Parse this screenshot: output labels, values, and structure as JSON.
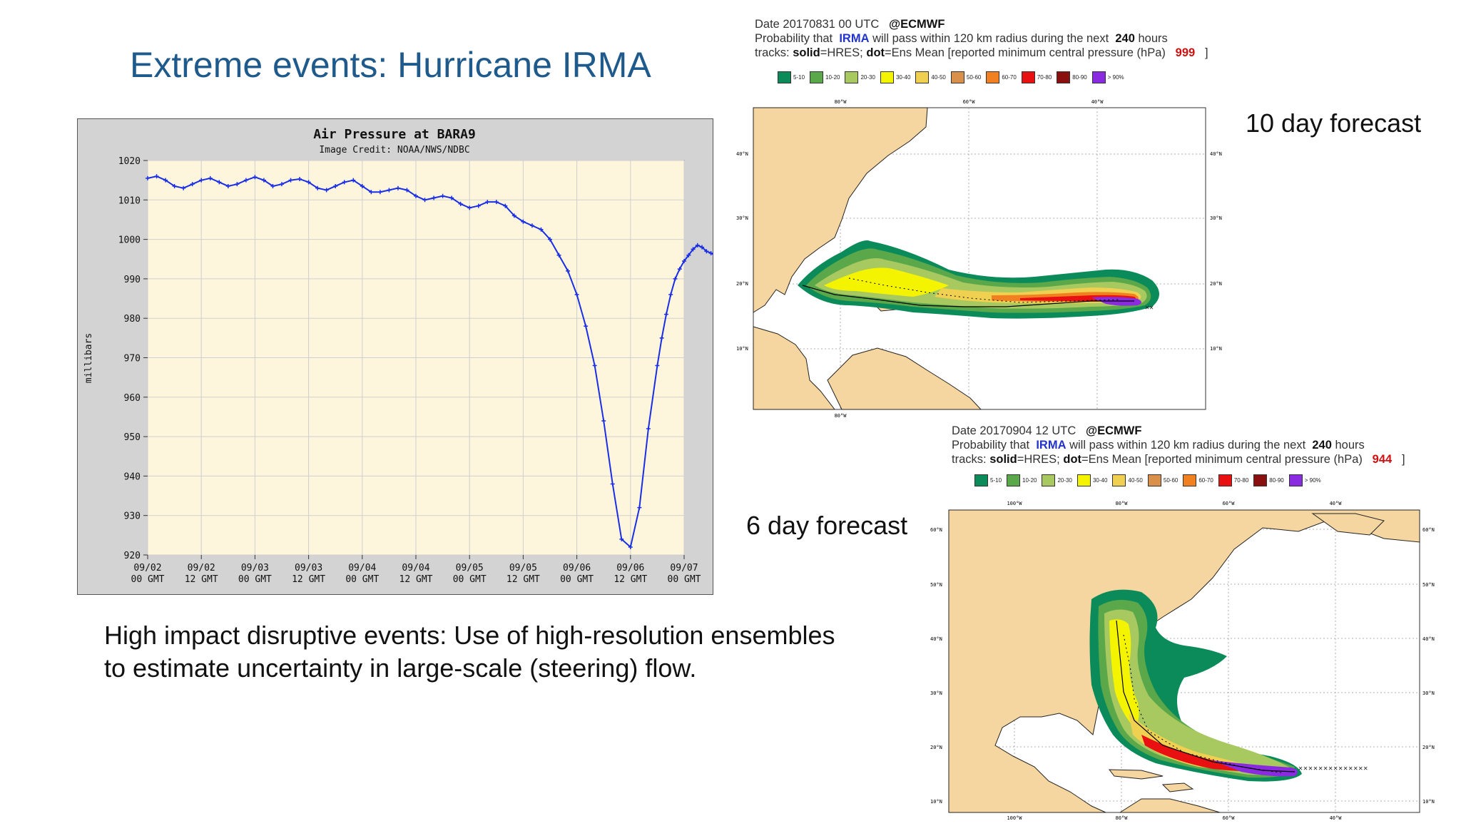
{
  "slide": {
    "title": "Extreme events: Hurricane IRMA",
    "caption_line1": "High impact disruptive events: Use of high-resolution ensembles",
    "caption_line2": "to estimate uncertainty in large-scale (steering) flow."
  },
  "chart_data": {
    "type": "line",
    "title": "Air Pressure at BARA9",
    "subtitle": "Image Credit: NOAA/NWS/NDBC",
    "ylabel": "millibars",
    "xlabel": "",
    "ylim": [
      920,
      1020
    ],
    "yticks": [
      1020,
      1010,
      1000,
      990,
      980,
      970,
      960,
      950,
      940,
      930,
      920
    ],
    "xticks": [
      {
        "date": "09/02",
        "time": "00 GMT"
      },
      {
        "date": "09/02",
        "time": "12 GMT"
      },
      {
        "date": "09/03",
        "time": "00 GMT"
      },
      {
        "date": "09/03",
        "time": "12 GMT"
      },
      {
        "date": "09/04",
        "time": "00 GMT"
      },
      {
        "date": "09/04",
        "time": "12 GMT"
      },
      {
        "date": "09/05",
        "time": "00 GMT"
      },
      {
        "date": "09/05",
        "time": "12 GMT"
      },
      {
        "date": "09/06",
        "time": "00 GMT"
      },
      {
        "date": "09/06",
        "time": "12 GMT"
      },
      {
        "date": "09/07",
        "time": "00 GMT"
      }
    ],
    "grid": true,
    "series": [
      {
        "color": "#1a2ee6",
        "x_hours": [
          0,
          2,
          4,
          6,
          8,
          10,
          12,
          14,
          16,
          18,
          20,
          22,
          24,
          26,
          28,
          30,
          32,
          34,
          36,
          38,
          40,
          42,
          44,
          46,
          48,
          50,
          52,
          54,
          56,
          58,
          60,
          62,
          64,
          66,
          68,
          70,
          72,
          74,
          76,
          78,
          80,
          82,
          84,
          86,
          88,
          90,
          92,
          94,
          96,
          98,
          100,
          102,
          104,
          106,
          108,
          110,
          112,
          114,
          115,
          116,
          117,
          118,
          119,
          120,
          121,
          122,
          123,
          124,
          125,
          126,
          127,
          128,
          129,
          130,
          131,
          132
        ],
        "values": [
          1015.5,
          1016,
          1015,
          1013.5,
          1013,
          1014,
          1015,
          1015.5,
          1014.5,
          1013.5,
          1014,
          1015,
          1015.8,
          1015,
          1013.5,
          1014,
          1015,
          1015.3,
          1014.5,
          1013,
          1012.5,
          1013.5,
          1014.5,
          1015,
          1013.5,
          1012,
          1012,
          1012.5,
          1013,
          1012.5,
          1011,
          1010,
          1010.5,
          1011,
          1010.5,
          1009,
          1008,
          1008.5,
          1009.5,
          1009.5,
          1008.5,
          1006,
          1004.5,
          1003.5,
          1002.5,
          1000,
          996,
          992,
          986,
          978,
          968,
          954,
          938,
          924,
          922,
          932,
          952,
          968,
          975,
          981,
          986,
          990,
          992.5,
          994.5,
          996,
          997.5,
          998.5,
          998,
          997,
          996.5,
          996,
          995.5,
          995,
          994.5,
          994,
          998.5
        ]
      }
    ]
  },
  "forecasts": [
    {
      "id": "top",
      "date_line": "Date 20170831 00 UTC",
      "org": "@ECMWF",
      "prob_prefix": "Probability that",
      "storm": "IRMA",
      "prob_suffix": "will pass within 120 km radius during the next",
      "hours": "240",
      "hours_unit": "hours",
      "tracks_prefix": "tracks:",
      "solid": "solid",
      "solid_def": "=HRES;",
      "dot": "dot",
      "dot_def": "=Ens Mean [reported minimum central pressure (hPa)",
      "pressure": "999",
      "close": "]",
      "label": "10 day forecast",
      "lon_labels": [
        "80°W",
        "60°W",
        "40°W"
      ],
      "lat_labels": [
        "40°N",
        "30°N",
        "20°N",
        "10°N"
      ],
      "bottom_lon": [
        "80°W"
      ]
    },
    {
      "id": "bottom",
      "date_line": "Date 20170904 12 UTC",
      "org": "@ECMWF",
      "prob_prefix": "Probability that",
      "storm": "IRMA",
      "prob_suffix": "will pass within 120 km radius during the next",
      "hours": "240",
      "hours_unit": "hours",
      "tracks_prefix": "tracks:",
      "solid": "solid",
      "solid_def": "=HRES;",
      "dot": "dot",
      "dot_def": "=Ens Mean [reported minimum central pressure (hPa)",
      "pressure": "944",
      "close": "]",
      "label": "6 day forecast",
      "lon_labels": [
        "100°W",
        "80°W",
        "60°W",
        "40°W"
      ],
      "lat_labels": [
        "60°N",
        "50°N",
        "40°N",
        "30°N",
        "20°N",
        "10°N"
      ]
    }
  ],
  "legend": [
    {
      "label": "5-10",
      "color": "#0b8a5a"
    },
    {
      "label": "10-20",
      "color": "#5aa84a"
    },
    {
      "label": "20-30",
      "color": "#a8c860"
    },
    {
      "label": "30-40",
      "color": "#f4f400"
    },
    {
      "label": "40-50",
      "color": "#f0d050"
    },
    {
      "label": "50-60",
      "color": "#d8904a"
    },
    {
      "label": "60-70",
      "color": "#f08020"
    },
    {
      "label": "70-80",
      "color": "#e81010"
    },
    {
      "label": "80-90",
      "color": "#8a1010"
    },
    {
      "label": "> 90%",
      "color": "#8a2be2"
    }
  ]
}
